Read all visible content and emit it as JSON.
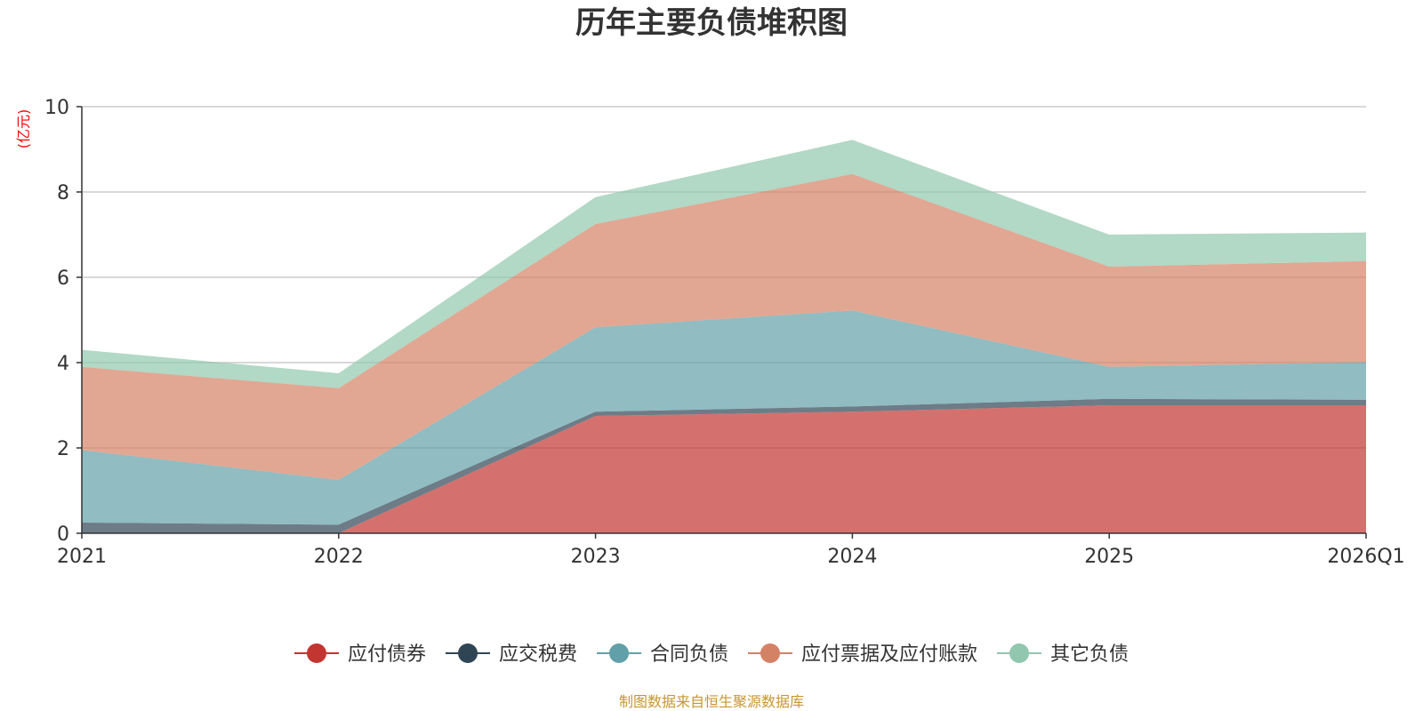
{
  "chart_data": {
    "type": "area",
    "stacked": true,
    "title": "历年主要负债堆积图",
    "ylabel": "(亿元)",
    "xlabel": "",
    "categories": [
      "2021",
      "2022",
      "2023",
      "2024",
      "2025",
      "2026Q1"
    ],
    "ylim": [
      0,
      10
    ],
    "yticks": [
      0,
      2,
      4,
      6,
      8,
      10
    ],
    "grid": true,
    "legend_position": "bottom",
    "series": [
      {
        "name": "应付债券",
        "color": "#c23531",
        "values": [
          0,
          0,
          2.75,
          2.85,
          3.0,
          3.0
        ]
      },
      {
        "name": "应交税费",
        "color": "#2f4554",
        "values": [
          0.25,
          0.2,
          0.1,
          0.12,
          0.15,
          0.13
        ]
      },
      {
        "name": "合同负债",
        "color": "#61a0a8",
        "values": [
          1.7,
          1.05,
          1.98,
          2.25,
          0.75,
          0.88
        ]
      },
      {
        "name": "应付票据及应付账款",
        "color": "#d48265",
        "values": [
          1.95,
          2.15,
          2.42,
          3.2,
          2.35,
          2.37
        ]
      },
      {
        "name": "其它负债",
        "color": "#91c7ae",
        "values": [
          0.4,
          0.35,
          0.63,
          0.8,
          0.75,
          0.67
        ]
      }
    ]
  },
  "unit_color": "#ff0000",
  "source_text": "制图数据来自恒生聚源数据库",
  "source_color": "#c8962e"
}
